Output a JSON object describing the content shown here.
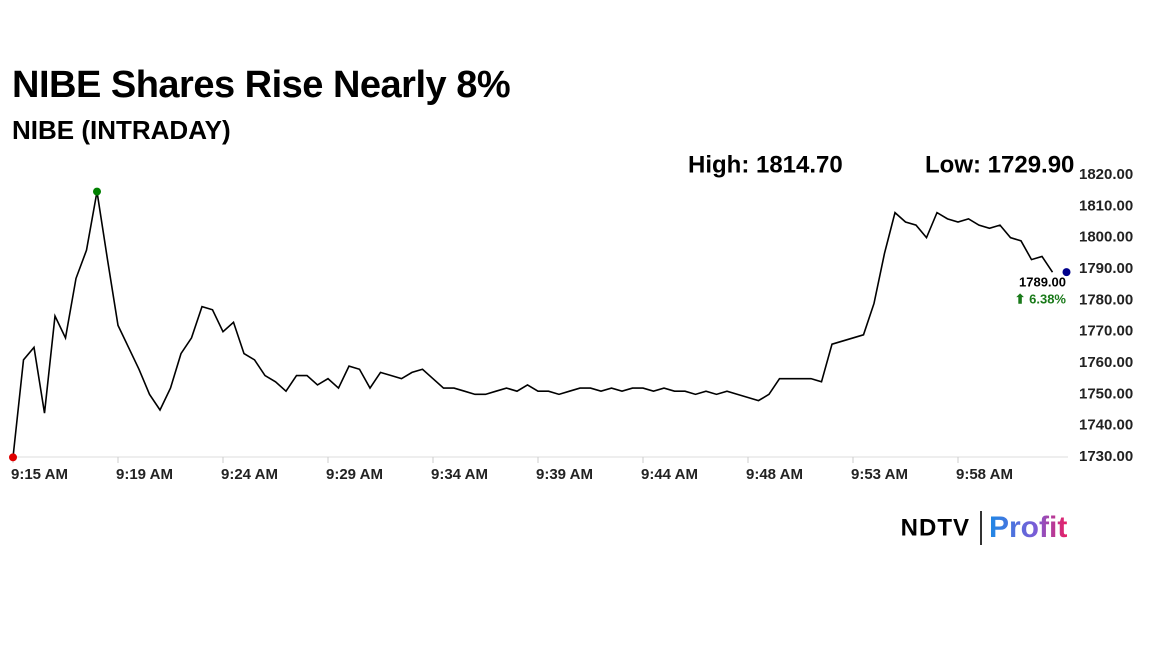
{
  "chart_data": {
    "type": "line",
    "title": "NIBE Shares Rise Nearly 8%",
    "subtitle": "NIBE (INTRADAY)",
    "high_label": "High: 1814.70",
    "low_label": "Low: 1729.90",
    "last_label": "1789.00",
    "change_label": "⬆ 6.38%",
    "brand": "NDTV",
    "brand_sub": "Profit",
    "color": "#000000",
    "high_color": "#008000",
    "low_color": "#e00000",
    "last_color": "#00008b",
    "change_color": "#1a7a1a",
    "values": [
      1729.9,
      1761,
      1765,
      1744,
      1775,
      1768,
      1787,
      1796,
      1814.7,
      1793,
      1772,
      1765,
      1758,
      1750,
      1745,
      1752,
      1763,
      1768,
      1778,
      1777,
      1770,
      1773,
      1763,
      1761,
      1756,
      1754,
      1751,
      1756,
      1756,
      1753,
      1755,
      1752,
      1759,
      1758,
      1752,
      1757,
      1756,
      1755,
      1757,
      1758,
      1755,
      1752,
      1752,
      1751,
      1750,
      1750,
      1751,
      1752,
      1751,
      1753,
      1751,
      1751,
      1750,
      1751,
      1752,
      1752,
      1751,
      1752,
      1751,
      1752,
      1752,
      1751,
      1752,
      1751,
      1751,
      1750,
      1751,
      1750,
      1751,
      1750,
      1749,
      1748,
      1750,
      1755,
      1755,
      1755,
      1755,
      1754,
      1766,
      1767,
      1768,
      1769,
      1779,
      1795,
      1808,
      1805,
      1804,
      1800,
      1808,
      1806,
      1805,
      1806,
      1804,
      1803,
      1804,
      1800,
      1799,
      1793,
      1794,
      1789
    ],
    "xlim": [
      0,
      99
    ],
    "xticks": [
      {
        "value": 0,
        "label": "9:15 AM"
      },
      {
        "value": 10,
        "label": "9:19 AM"
      },
      {
        "value": 20,
        "label": "9:24 AM"
      },
      {
        "value": 30,
        "label": "9:29 AM"
      },
      {
        "value": 40,
        "label": "9:34 AM"
      },
      {
        "value": 50,
        "label": "9:39 AM"
      },
      {
        "value": 60,
        "label": "9:44 AM"
      },
      {
        "value": 70,
        "label": "9:48 AM"
      },
      {
        "value": 80,
        "label": "9:53 AM"
      },
      {
        "value": 90,
        "label": "9:58 AM"
      }
    ],
    "ylim": [
      1730,
      1820
    ],
    "yticks": [
      {
        "value": 1730,
        "label": "1730.00"
      },
      {
        "value": 1740,
        "label": "1740.00"
      },
      {
        "value": 1750,
        "label": "1750.00"
      },
      {
        "value": 1760,
        "label": "1760.00"
      },
      {
        "value": 1770,
        "label": "1770.00"
      },
      {
        "value": 1780,
        "label": "1780.00"
      },
      {
        "value": 1790,
        "label": "1790.00"
      },
      {
        "value": 1800,
        "label": "1800.00"
      },
      {
        "value": 1810,
        "label": "1810.00"
      },
      {
        "value": 1820,
        "label": "1820.00"
      }
    ]
  }
}
